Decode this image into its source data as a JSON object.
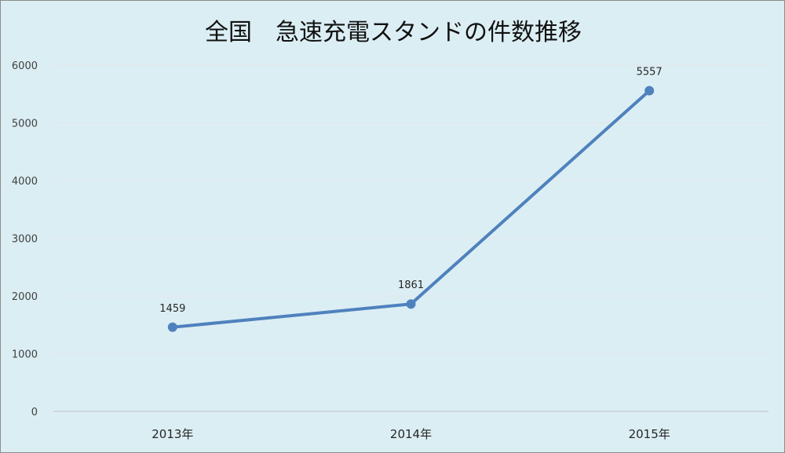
{
  "chart_data": {
    "type": "line",
    "title": "全国　急速充電スタンドの件数推移",
    "categories": [
      "2013年",
      "2014年",
      "2015年"
    ],
    "series": [
      {
        "values": [
          1459,
          1861,
          5557
        ]
      }
    ],
    "ylim": [
      0,
      6000
    ],
    "yticks": [
      0,
      1000,
      2000,
      3000,
      4000,
      5000,
      6000
    ],
    "data_labels": [
      "1459",
      "1861",
      "5557"
    ],
    "grid": true,
    "legend": "none",
    "colors": {
      "line": "#4f81bd",
      "background": "#dbeef4"
    }
  }
}
